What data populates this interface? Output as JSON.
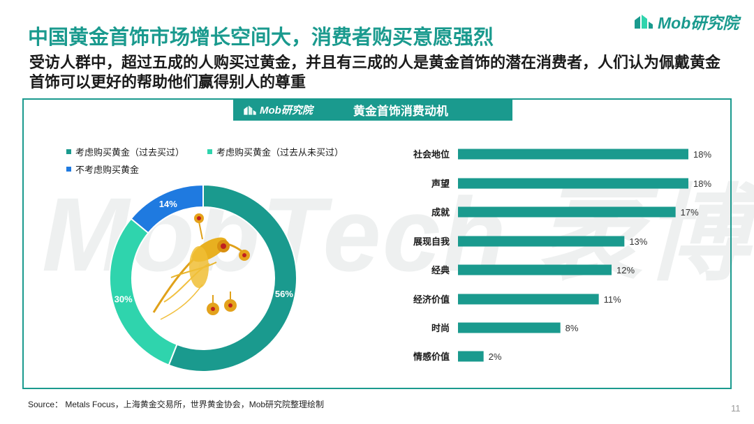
{
  "title": "中国黄金首饰市场增长空间大，消费者购买意愿强烈",
  "subtitle": "受访人群中，超过五成的人购买过黄金，并且有三成的人是黄金首饰的潜在消费者，人们认为佩戴黄金首饰可以更好的帮助他们赢得别人的尊重",
  "logo_text": "Mob研究院",
  "header": {
    "logo_text": "Mob研究院",
    "title": "黄金首饰消费动机"
  },
  "watermark": "MobTech 袤博",
  "source": "Source： Metals Focus，上海黄金交易所，世界黄金协会，Mob研究院整理绘制",
  "page_number": "11",
  "colors": {
    "teal": "#1a9a8e",
    "mint": "#2fd4ad",
    "blue": "#1f7ae0"
  },
  "chart_data": [
    {
      "type": "pie",
      "variant": "donut",
      "legend_position": "top",
      "center_image": "gold-jewelry-photo",
      "slices": [
        {
          "label": "考虑购买黄金（过去买过）",
          "value": 56,
          "display": "56%",
          "color": "#1a9a8e"
        },
        {
          "label": "考虑购买黄金（过去从未买过）",
          "value": 30,
          "display": "30%",
          "color": "#2fd4ad"
        },
        {
          "label": "不考虑购买黄金",
          "value": 14,
          "display": "14%",
          "color": "#1f7ae0"
        }
      ]
    },
    {
      "type": "bar",
      "orientation": "horizontal",
      "categories": [
        "社会地位",
        "声望",
        "成就",
        "展现自我",
        "经典",
        "经济价值",
        "时尚",
        "情感价值"
      ],
      "values": [
        18,
        18,
        17,
        13,
        12,
        11,
        8,
        2
      ],
      "labels": [
        "18%",
        "18%",
        "17%",
        "13%",
        "12%",
        "11%",
        "8%",
        "2%"
      ],
      "unit": "%",
      "color": "#1a9a8e",
      "xlim": [
        0,
        18
      ],
      "grid": false
    }
  ]
}
